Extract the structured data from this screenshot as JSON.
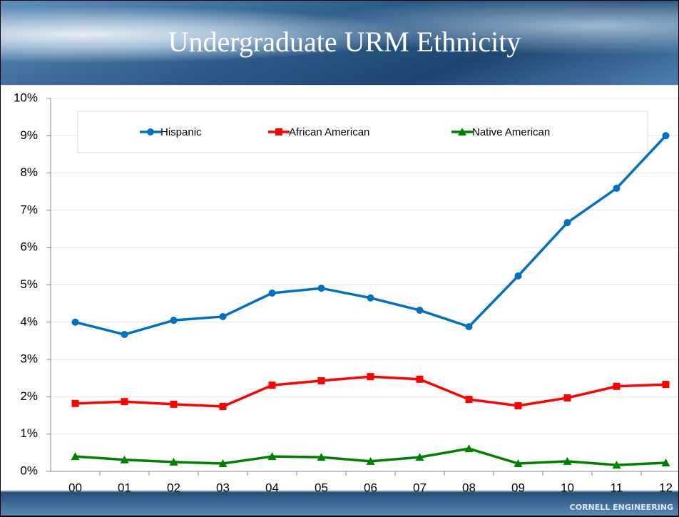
{
  "chart_data": {
    "type": "line",
    "title": "Undergraduate URM Ethnicity",
    "categories": [
      "00",
      "01",
      "02",
      "03",
      "04",
      "05",
      "06",
      "07",
      "08",
      "09",
      "10",
      "11",
      "12"
    ],
    "series": [
      {
        "name": "Hispanic",
        "color": "#0070c0",
        "marker": "circle",
        "values": [
          4.0,
          3.67,
          4.05,
          4.15,
          4.78,
          4.91,
          4.65,
          4.32,
          3.88,
          5.24,
          6.67,
          7.59,
          9.0
        ]
      },
      {
        "name": "African American",
        "color": "#ff0000",
        "marker": "square",
        "values": [
          1.82,
          1.87,
          1.8,
          1.74,
          2.31,
          2.43,
          2.54,
          2.47,
          1.93,
          1.76,
          1.97,
          2.28,
          2.33
        ]
      },
      {
        "name": "Native American",
        "color": "#008000",
        "marker": "triangle",
        "values": [
          0.4,
          0.31,
          0.25,
          0.21,
          0.4,
          0.38,
          0.27,
          0.38,
          0.61,
          0.21,
          0.27,
          0.17,
          0.23
        ]
      }
    ],
    "ylim": [
      0,
      10
    ],
    "yticks": [
      {
        "value": 0,
        "label": "0%"
      },
      {
        "value": 1,
        "label": "1%"
      },
      {
        "value": 2,
        "label": "2%"
      },
      {
        "value": 3,
        "label": "3%"
      },
      {
        "value": 4,
        "label": "4%"
      },
      {
        "value": 5,
        "label": "5%"
      },
      {
        "value": 6,
        "label": "6%"
      },
      {
        "value": 7,
        "label": "7%"
      },
      {
        "value": 8,
        "label": "8%"
      },
      {
        "value": 9,
        "label": "9%"
      },
      {
        "value": 10,
        "label": "10%"
      }
    ],
    "grid": true
  },
  "footer": "CORNELL ENGINEERING"
}
